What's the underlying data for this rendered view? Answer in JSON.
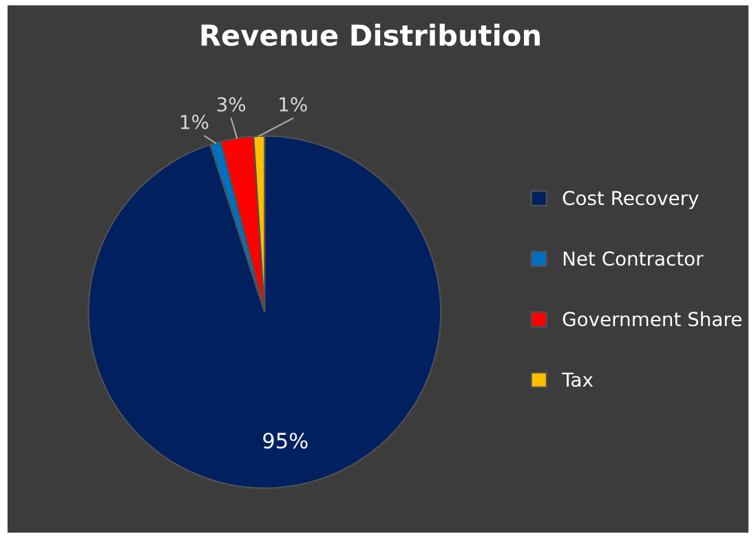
{
  "chart_data": {
    "type": "pie",
    "title": "Revenue Distribution",
    "categories": [
      "Cost Recovery",
      "Net Contractor",
      "Government Share",
      "Tax"
    ],
    "values": [
      95,
      1,
      3,
      1
    ],
    "colors": [
      "#002060",
      "#0070c0",
      "#ff0000",
      "#ffc000"
    ],
    "value_labels": [
      "95%",
      "1%",
      "3%",
      "1%"
    ],
    "legend": "right"
  }
}
